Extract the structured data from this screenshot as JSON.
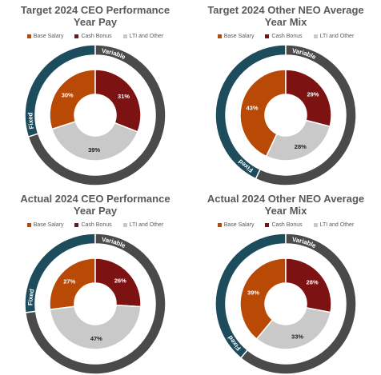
{
  "colors": {
    "base_salary": "#B84A05",
    "cash_bonus": "#7D1212",
    "lti_other": "#C9C9C9",
    "fixed": "#1D4D5C",
    "variable": "#4A4A4A"
  },
  "legend_labels": [
    "Base Salary",
    "Cash Bonus",
    "LTI and Other"
  ],
  "outer_labels": {
    "fixed": "Fixed",
    "variable": "Variable"
  },
  "chart_data": [
    {
      "type": "pie",
      "title": "Target 2024 CEO Performance Year Pay",
      "title_lines": [
        "Target 2024 CEO Performance",
        "Year Pay"
      ],
      "inner": {
        "categories": [
          "Base Salary",
          "Cash Bonus",
          "LTI and Other"
        ],
        "values": [
          30,
          31,
          39
        ],
        "labels": [
          "30%",
          "31%",
          "39%"
        ]
      },
      "outer": {
        "categories": [
          "Fixed",
          "Variable"
        ],
        "values": [
          30,
          70
        ]
      }
    },
    {
      "type": "pie",
      "title": "Target 2024 Other NEO Average Year Mix",
      "title_lines": [
        "Target 2024 Other NEO Average",
        "Year Mix"
      ],
      "inner": {
        "categories": [
          "Base Salary",
          "Cash Bonus",
          "LTI and Other"
        ],
        "values": [
          43,
          29,
          28
        ],
        "labels": [
          "43%",
          "29%",
          "28%"
        ]
      },
      "outer": {
        "categories": [
          "Fixed",
          "Variable"
        ],
        "values": [
          43,
          57
        ]
      }
    },
    {
      "type": "pie",
      "title": "Actual 2024 CEO Performance Year Pay",
      "title_lines": [
        "Actual 2024 CEO Performance",
        "Year Pay"
      ],
      "inner": {
        "categories": [
          "Base Salary",
          "Cash Bonus",
          "LTI and Other"
        ],
        "values": [
          27,
          26,
          47
        ],
        "labels": [
          "27%",
          "26%",
          "47%"
        ]
      },
      "outer": {
        "categories": [
          "Fixed",
          "Variable"
        ],
        "values": [
          27,
          73
        ]
      }
    },
    {
      "type": "pie",
      "title": "Actual 2024 Other NEO Average Year Mix",
      "title_lines": [
        "Actual 2024 Other NEO Average",
        "Year Mix"
      ],
      "inner": {
        "categories": [
          "Base Salary",
          "Cash Bonus",
          "LTI and Other"
        ],
        "values": [
          39,
          28,
          33
        ],
        "labels": [
          "39%",
          "28%",
          "33%"
        ]
      },
      "outer": {
        "categories": [
          "Fixed",
          "Variable"
        ],
        "values": [
          39,
          61
        ]
      }
    }
  ]
}
